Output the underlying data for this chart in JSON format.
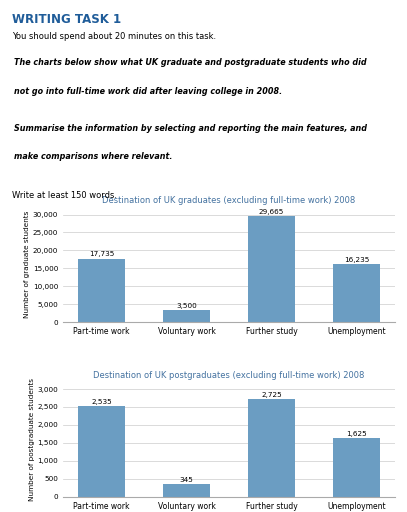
{
  "title_main": "WRITING TASK 1",
  "subtitle": "You should spend about 20 minutes on this task.",
  "box_text_line1": "The charts below show what UK graduate and postgraduate students who did",
  "box_text_line2": "not go into full-time work did after leaving college in 2008.",
  "box_text_line3": "Summarise the information by selecting and reporting the main features, and",
  "box_text_line4": "make comparisons where relevant.",
  "write_text": "Write at least 150 words.",
  "chart1_title": "Destination of UK graduates (excluding full-time work) 2008",
  "chart1_categories": [
    "Part-time work",
    "Voluntary work",
    "Further study",
    "Unemployment"
  ],
  "chart1_values": [
    17735,
    3500,
    29665,
    16235
  ],
  "chart1_labels": [
    "17,735",
    "3,500",
    "29,665",
    "16,235"
  ],
  "chart1_ylabel": "Number of graduate students",
  "chart1_ylim": [
    0,
    32000
  ],
  "chart1_yticks": [
    0,
    5000,
    10000,
    15000,
    20000,
    25000,
    30000
  ],
  "chart1_ytick_labels": [
    "0",
    "5,000",
    "10,000",
    "15,000",
    "20,000",
    "25,000",
    "30,000"
  ],
  "chart2_title": "Destination of UK postgraduates (excluding full-time work) 2008",
  "chart2_categories": [
    "Part-time work",
    "Voluntary work",
    "Further study",
    "Unemployment"
  ],
  "chart2_values": [
    2535,
    345,
    2725,
    1625
  ],
  "chart2_labels": [
    "2,535",
    "345",
    "2,725",
    "1,625"
  ],
  "chart2_ylabel": "Number of postgraduate students",
  "chart2_ylim": [
    0,
    3200
  ],
  "chart2_yticks": [
    0,
    500,
    1000,
    1500,
    2000,
    2500,
    3000
  ],
  "chart2_ytick_labels": [
    "0",
    "500",
    "1,000",
    "1,500",
    "2,000",
    "2,500",
    "3,000"
  ],
  "bar_color": "#6B9DC2",
  "title_color": "#1F5C99",
  "chart_title_color": "#4472a0",
  "bg_color": "#FFFFFF",
  "box_border_color": "#5577aa",
  "box_bg_color": "#dce9f5"
}
